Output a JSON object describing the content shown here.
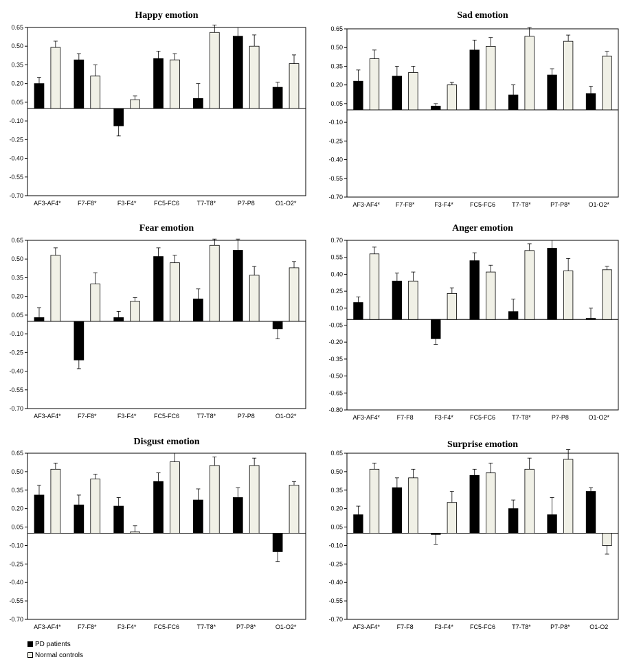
{
  "legend": {
    "pd_label": "PD patients",
    "nc_label": "Normal controls",
    "pd_color": "#000000",
    "nc_color": "#f0f0e6"
  },
  "chart_data": [
    {
      "type": "bar",
      "title": "Happy emotion",
      "categories": [
        "AF3-AF4*",
        "F7-F8*",
        "F3-F4*",
        "FC5-FC6",
        "T7-T8*",
        "P7-P8",
        "O1-O2*"
      ],
      "yticks": [
        "0.65",
        "0.50",
        "0.35",
        "0.20",
        "0.05",
        "-0.10",
        "-0.25",
        "-0.40",
        "-0.55",
        "-0.70"
      ],
      "ylim": [
        -0.7,
        0.65
      ],
      "series": [
        {
          "name": "PD patients",
          "values": [
            0.2,
            0.39,
            -0.14,
            0.4,
            0.08,
            0.58,
            0.17
          ],
          "errors": [
            0.05,
            0.05,
            0.08,
            0.06,
            0.12,
            0.07,
            0.04
          ]
        },
        {
          "name": "Normal controls",
          "values": [
            0.49,
            0.26,
            0.07,
            0.39,
            0.61,
            0.5,
            0.36
          ],
          "errors": [
            0.05,
            0.09,
            0.03,
            0.05,
            0.06,
            0.09,
            0.07
          ]
        }
      ]
    },
    {
      "type": "bar",
      "title": "Sad emotion",
      "categories": [
        "AF3-AF4*",
        "F7-F8*",
        "F3-F4*",
        "FC5-FC6",
        "T7-T8*",
        "P7-P8*",
        "O1-O2*"
      ],
      "yticks": [
        "0.65",
        "0.50",
        "0.35",
        "0.20",
        "0.05",
        "-0.10",
        "-0.25",
        "-0.40",
        "-0.55",
        "-0.70"
      ],
      "ylim": [
        -0.7,
        0.65
      ],
      "series": [
        {
          "name": "PD patients",
          "values": [
            0.23,
            0.27,
            0.03,
            0.48,
            0.12,
            0.28,
            0.13
          ],
          "errors": [
            0.09,
            0.08,
            0.02,
            0.08,
            0.08,
            0.05,
            0.06
          ]
        },
        {
          "name": "Normal controls",
          "values": [
            0.41,
            0.3,
            0.2,
            0.51,
            0.59,
            0.55,
            0.43
          ],
          "errors": [
            0.07,
            0.05,
            0.02,
            0.07,
            0.07,
            0.05,
            0.04
          ]
        }
      ]
    },
    {
      "type": "bar",
      "title": "Fear emotion",
      "categories": [
        "AF3-AF4*",
        "F7-F8*",
        "F3-F4*",
        "FC5-FC6",
        "T7-T8*",
        "P7-P8",
        "O1-O2*"
      ],
      "yticks": [
        "0.65",
        "0.50",
        "0.35",
        "0.20",
        "0.05",
        "-0.10",
        "-0.25",
        "-0.40",
        "-0.55",
        "-0.70"
      ],
      "ylim": [
        -0.7,
        0.65
      ],
      "series": [
        {
          "name": "PD patients",
          "values": [
            0.03,
            -0.31,
            0.03,
            0.52,
            0.18,
            0.57,
            -0.06
          ],
          "errors": [
            0.08,
            0.07,
            0.05,
            0.07,
            0.08,
            0.09,
            0.08
          ]
        },
        {
          "name": "Normal controls",
          "values": [
            0.53,
            0.3,
            0.16,
            0.47,
            0.61,
            0.37,
            0.43
          ],
          "errors": [
            0.06,
            0.09,
            0.03,
            0.06,
            0.05,
            0.07,
            0.05
          ]
        }
      ]
    },
    {
      "type": "bar",
      "title": "Anger emotion",
      "categories": [
        "AF3-AF4*",
        "F7-F8",
        "F3-F4*",
        "FC5-FC6",
        "T7-T8*",
        "P7-P8",
        "O1-O2*"
      ],
      "yticks": [
        "0.70",
        "0.55",
        "0.40",
        "0.25",
        "0.10",
        "-0.05",
        "-0.20",
        "-0.35",
        "-0.50",
        "-0.65",
        "-0.80"
      ],
      "ylim": [
        -0.8,
        0.7
      ],
      "series": [
        {
          "name": "PD patients",
          "values": [
            0.15,
            0.34,
            -0.17,
            0.52,
            0.07,
            0.63,
            0.01
          ],
          "errors": [
            0.05,
            0.07,
            0.05,
            0.07,
            0.11,
            0.07,
            0.09
          ]
        },
        {
          "name": "Normal controls",
          "values": [
            0.58,
            0.34,
            0.23,
            0.42,
            0.61,
            0.43,
            0.44
          ],
          "errors": [
            0.06,
            0.08,
            0.05,
            0.06,
            0.06,
            0.11,
            0.03
          ]
        }
      ]
    },
    {
      "type": "bar",
      "title": "Disgust emotion",
      "categories": [
        "AF3-AF4*",
        "F7-F8*",
        "F3-F4*",
        "FC5-FC6",
        "T7-T8*",
        "P7-P8*",
        "O1-O2*"
      ],
      "yticks": [
        "0.65",
        "0.50",
        "0.35",
        "0.20",
        "0.05",
        "-0.10",
        "-0.25",
        "-0.40",
        "-0.55",
        "-0.70"
      ],
      "ylim": [
        -0.7,
        0.65
      ],
      "series": [
        {
          "name": "PD patients",
          "values": [
            0.31,
            0.23,
            0.22,
            0.42,
            0.27,
            0.29,
            -0.15
          ],
          "errors": [
            0.08,
            0.08,
            0.07,
            0.07,
            0.09,
            0.08,
            0.08
          ]
        },
        {
          "name": "Normal controls",
          "values": [
            0.52,
            0.44,
            0.01,
            0.58,
            0.55,
            0.55,
            0.39
          ],
          "errors": [
            0.05,
            0.04,
            0.05,
            0.07,
            0.07,
            0.06,
            0.03
          ]
        }
      ]
    },
    {
      "type": "bar",
      "title": "Surprise emotion",
      "categories": [
        "AF3-AF4*",
        "F7-F8",
        "F3-F4*",
        "FC5-FC6",
        "T7-T8*",
        "P7-P8*",
        "O1-O2"
      ],
      "yticks": [
        "0.65",
        "0.50",
        "0.35",
        "0.20",
        "0.05",
        "-0.10",
        "-0.25",
        "-0.40",
        "-0.55",
        "-0.70"
      ],
      "ylim": [
        -0.7,
        0.65
      ],
      "series": [
        {
          "name": "PD patients",
          "values": [
            0.15,
            0.37,
            -0.01,
            0.47,
            0.2,
            0.15,
            0.34
          ],
          "errors": [
            0.07,
            0.08,
            0.08,
            0.05,
            0.07,
            0.14,
            0.03
          ]
        },
        {
          "name": "Normal controls",
          "values": [
            0.52,
            0.45,
            0.25,
            0.49,
            0.52,
            0.6,
            -0.1
          ],
          "errors": [
            0.05,
            0.07,
            0.09,
            0.08,
            0.09,
            0.08,
            0.07
          ]
        }
      ]
    }
  ]
}
